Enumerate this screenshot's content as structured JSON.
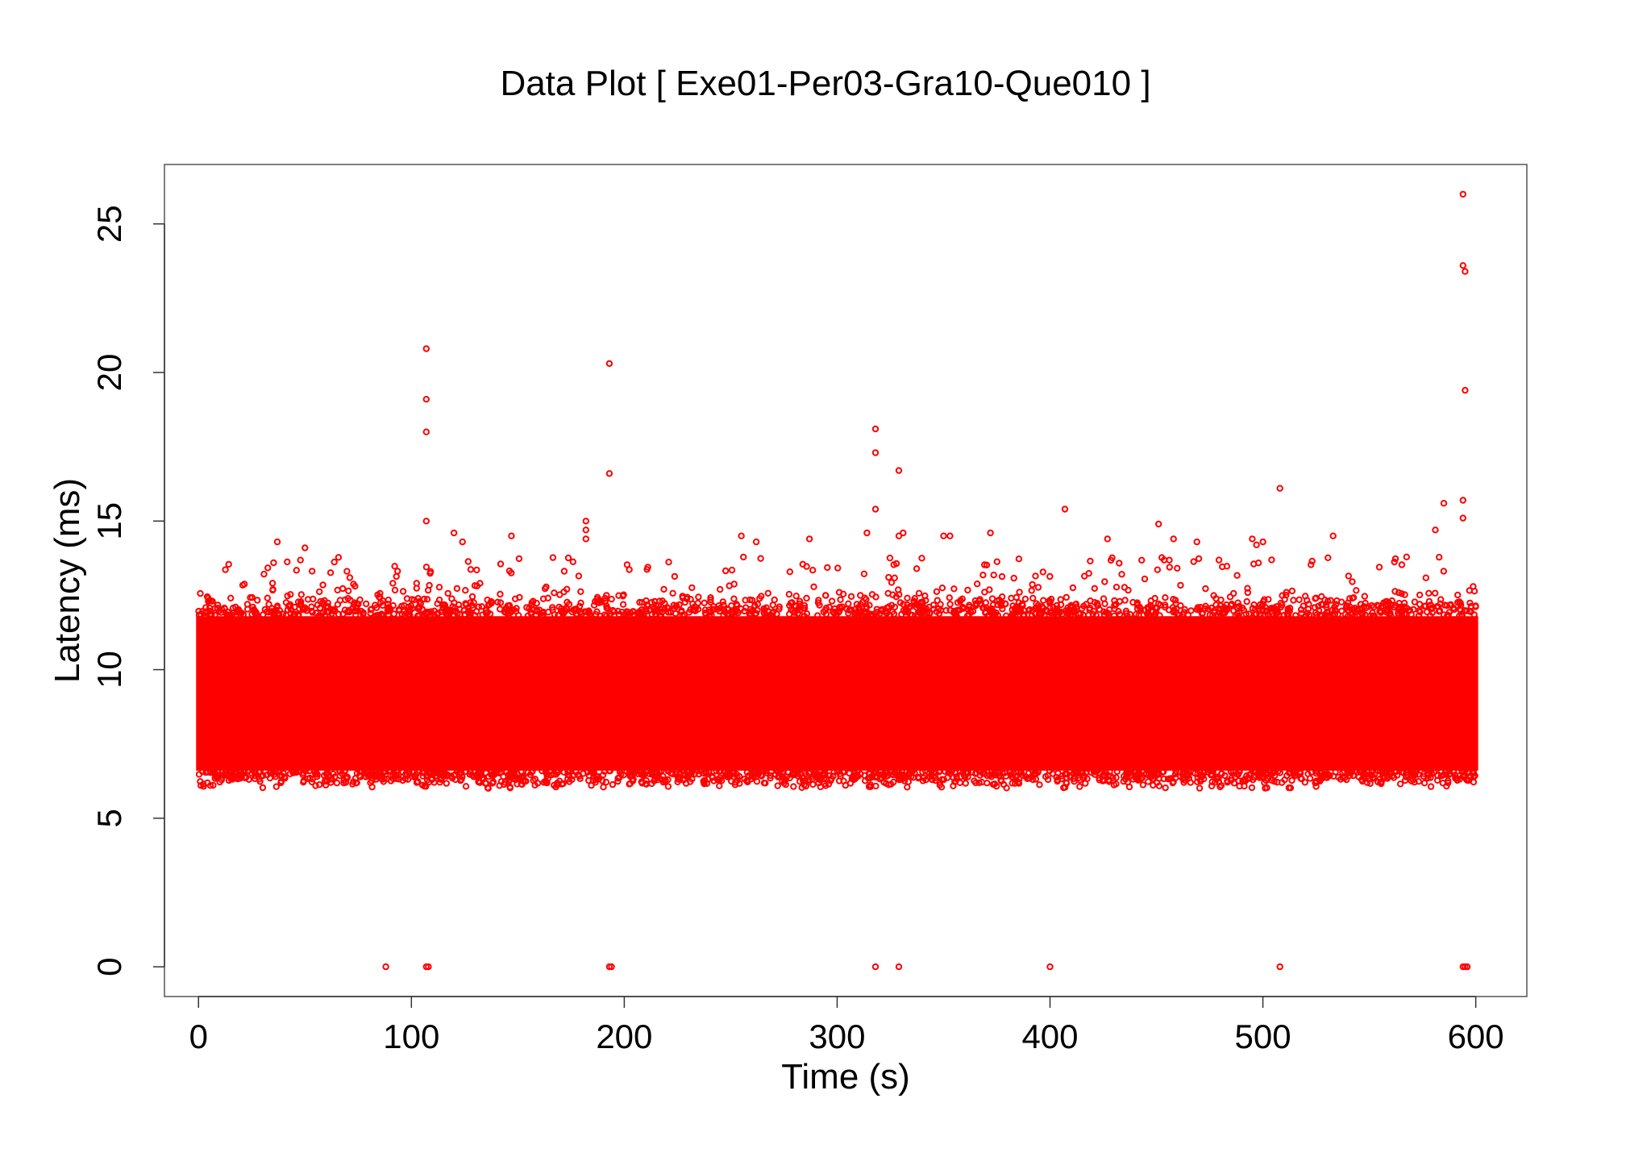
{
  "chart_data": {
    "type": "scatter",
    "title": "Data Plot [ Exe01-Per03-Gra10-Que010 ]",
    "xlabel": "Time (s)",
    "ylabel": "Latency (ms)",
    "xlim": [
      -16,
      624
    ],
    "ylim": [
      -1,
      27
    ],
    "x_ticks": [
      0,
      100,
      200,
      300,
      400,
      500,
      600
    ],
    "y_ticks": [
      0,
      5,
      10,
      15,
      20,
      25
    ],
    "x_tick_labels": [
      "0",
      "100",
      "200",
      "300",
      "400",
      "500",
      "600"
    ],
    "y_tick_labels": [
      "0",
      "5",
      "10",
      "15",
      "20",
      "25"
    ],
    "grid": false,
    "marker_color": "#ff0000",
    "series": [
      {
        "band": {
          "x_range": [
            0,
            600
          ],
          "y_core": [
            6.6,
            11.8
          ],
          "y_spread": [
            6.0,
            12.6
          ],
          "description_level": "dense"
        },
        "points": [
          {
            "x": 107,
            "y": 20.8
          },
          {
            "x": 107,
            "y": 19.1
          },
          {
            "x": 107,
            "y": 18.0
          },
          {
            "x": 107,
            "y": 15.0
          },
          {
            "x": 193,
            "y": 20.3
          },
          {
            "x": 193,
            "y": 16.6
          },
          {
            "x": 182,
            "y": 15.0
          },
          {
            "x": 182,
            "y": 14.7
          },
          {
            "x": 182,
            "y": 14.4
          },
          {
            "x": 318,
            "y": 18.1
          },
          {
            "x": 318,
            "y": 17.3
          },
          {
            "x": 329,
            "y": 16.7
          },
          {
            "x": 318,
            "y": 15.4
          },
          {
            "x": 329,
            "y": 14.5
          },
          {
            "x": 331,
            "y": 14.6
          },
          {
            "x": 407,
            "y": 15.4
          },
          {
            "x": 508,
            "y": 16.1
          },
          {
            "x": 451,
            "y": 14.9
          },
          {
            "x": 594,
            "y": 26.0
          },
          {
            "x": 594,
            "y": 23.6
          },
          {
            "x": 595,
            "y": 23.4
          },
          {
            "x": 595,
            "y": 19.4
          },
          {
            "x": 594,
            "y": 15.7
          },
          {
            "x": 594,
            "y": 15.1
          },
          {
            "x": 585,
            "y": 15.6
          },
          {
            "x": 581,
            "y": 14.7
          },
          {
            "x": 37,
            "y": 14.3
          },
          {
            "x": 50,
            "y": 14.1
          },
          {
            "x": 120,
            "y": 14.6
          },
          {
            "x": 124,
            "y": 14.3
          },
          {
            "x": 147,
            "y": 14.5
          },
          {
            "x": 255,
            "y": 14.5
          },
          {
            "x": 262,
            "y": 14.3
          },
          {
            "x": 287,
            "y": 14.4
          },
          {
            "x": 314,
            "y": 14.6
          },
          {
            "x": 350,
            "y": 14.5
          },
          {
            "x": 353,
            "y": 14.5
          },
          {
            "x": 372,
            "y": 14.6
          },
          {
            "x": 427,
            "y": 14.4
          },
          {
            "x": 458,
            "y": 14.4
          },
          {
            "x": 469,
            "y": 14.3
          },
          {
            "x": 495,
            "y": 14.4
          },
          {
            "x": 497,
            "y": 14.2
          },
          {
            "x": 500,
            "y": 14.3
          },
          {
            "x": 533,
            "y": 14.5
          },
          {
            "x": 88,
            "y": 0.0
          },
          {
            "x": 107,
            "y": 0.0
          },
          {
            "x": 108,
            "y": 0.0
          },
          {
            "x": 193,
            "y": 0.0
          },
          {
            "x": 194,
            "y": 0.0
          },
          {
            "x": 318,
            "y": 0.0
          },
          {
            "x": 329,
            "y": 0.0
          },
          {
            "x": 400,
            "y": 0.0
          },
          {
            "x": 508,
            "y": 0.0
          },
          {
            "x": 594,
            "y": 0.0
          },
          {
            "x": 595,
            "y": 0.0
          },
          {
            "x": 596,
            "y": 0.0
          }
        ]
      }
    ]
  }
}
